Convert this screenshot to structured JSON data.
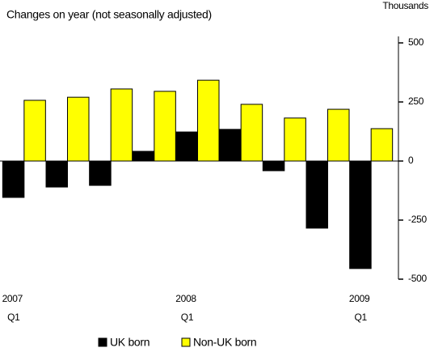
{
  "chart_data": {
    "type": "bar",
    "title": "Changes on year (not seasonally adjusted)",
    "y_axis_label": "Thousands",
    "categories": [
      "2007 Q1",
      null,
      null,
      null,
      "2008 Q1",
      null,
      null,
      null,
      "2009 Q1"
    ],
    "series": [
      {
        "name": "UK born",
        "color": "#000000",
        "values": [
          -154,
          -110,
          -103,
          41,
          123,
          134,
          -41,
          -284,
          -455
        ]
      },
      {
        "name": "Non-UK born",
        "color": "#ffff00",
        "values": [
          257,
          270,
          305,
          295,
          342,
          240,
          182,
          219,
          137
        ]
      }
    ],
    "ylim": [
      -500,
      500
    ],
    "yticks": [
      -500,
      -250,
      0,
      250,
      500
    ],
    "legend": "bottom"
  }
}
